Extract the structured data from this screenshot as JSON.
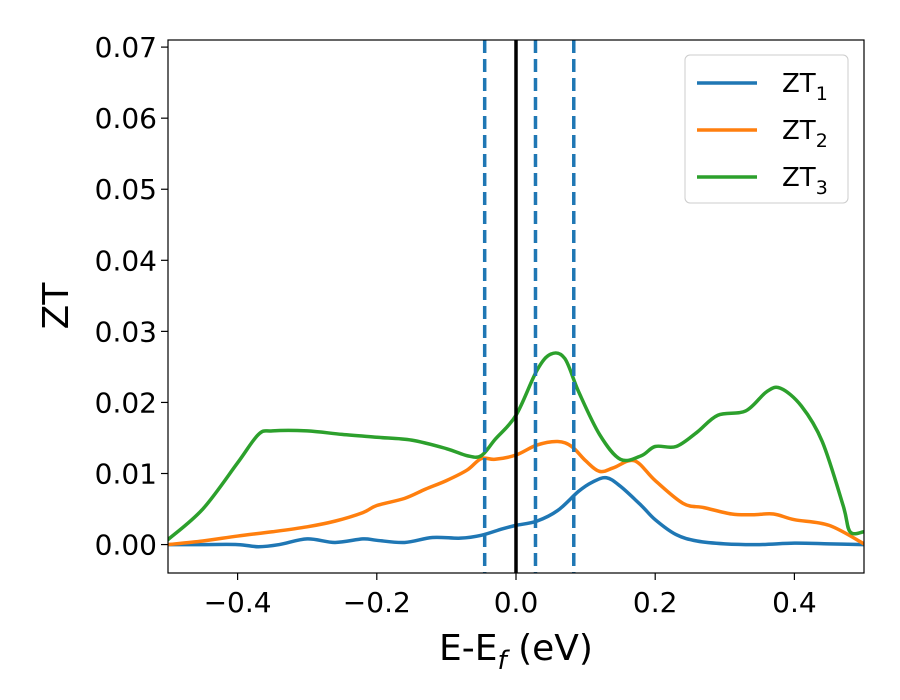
{
  "chart_data": {
    "type": "line",
    "title": "",
    "xlabel": "E-E",
    "xlabel_sub": "f",
    "xlabel_unit": " (eV)",
    "ylabel": "ZT",
    "xlim": [
      -0.5,
      0.5
    ],
    "ylim": [
      -0.004,
      0.071
    ],
    "x_ticks": [
      -0.4,
      -0.2,
      0.0,
      0.2,
      0.4
    ],
    "x_tick_labels": [
      "−0.4",
      "−0.2",
      "0.0",
      "0.2",
      "0.4"
    ],
    "y_ticks": [
      0.0,
      0.01,
      0.02,
      0.03,
      0.04,
      0.05,
      0.06,
      0.07
    ],
    "y_tick_labels": [
      "0.00",
      "0.01",
      "0.02",
      "0.03",
      "0.04",
      "0.05",
      "0.06",
      "0.07"
    ],
    "grid": false,
    "legend_position": "top-right",
    "vertical_lines": [
      {
        "x": -0.045,
        "style": "dashed",
        "color": "#1f77b4"
      },
      {
        "x": 0.0,
        "style": "solid",
        "color": "#000000"
      },
      {
        "x": 0.028,
        "style": "dashed",
        "color": "#1f77b4"
      },
      {
        "x": 0.083,
        "style": "dashed",
        "color": "#1f77b4"
      }
    ],
    "series": [
      {
        "name": "ZT",
        "name_sub": "1",
        "color": "#1f77b4",
        "x": [
          -0.5,
          -0.45,
          -0.4,
          -0.37,
          -0.34,
          -0.3,
          -0.26,
          -0.22,
          -0.2,
          -0.16,
          -0.12,
          -0.08,
          -0.05,
          -0.02,
          0.0,
          0.03,
          0.06,
          0.09,
          0.11,
          0.13,
          0.15,
          0.18,
          0.2,
          0.23,
          0.26,
          0.3,
          0.35,
          0.4,
          0.45,
          0.5
        ],
        "values": [
          0.0,
          0.0,
          0.0,
          -0.0003,
          0.0,
          0.0008,
          0.0003,
          0.0008,
          0.0006,
          0.0003,
          0.001,
          0.0009,
          0.0013,
          0.0022,
          0.0027,
          0.0033,
          0.0048,
          0.0075,
          0.0088,
          0.0094,
          0.0082,
          0.0055,
          0.0035,
          0.0014,
          0.0005,
          0.0001,
          0.0,
          0.0002,
          0.0001,
          0.0
        ]
      },
      {
        "name": "ZT",
        "name_sub": "2",
        "color": "#ff7f0e",
        "x": [
          -0.5,
          -0.45,
          -0.4,
          -0.35,
          -0.3,
          -0.26,
          -0.22,
          -0.2,
          -0.16,
          -0.13,
          -0.1,
          -0.07,
          -0.05,
          -0.03,
          0.0,
          0.03,
          0.06,
          0.08,
          0.1,
          0.12,
          0.14,
          0.17,
          0.2,
          0.24,
          0.27,
          0.31,
          0.34,
          0.37,
          0.4,
          0.45,
          0.5
        ],
        "values": [
          0.0,
          0.0005,
          0.0012,
          0.0018,
          0.0025,
          0.0033,
          0.0045,
          0.0055,
          0.0065,
          0.0078,
          0.009,
          0.0105,
          0.0121,
          0.012,
          0.0126,
          0.014,
          0.0145,
          0.0138,
          0.0118,
          0.0103,
          0.0108,
          0.0118,
          0.009,
          0.0058,
          0.0052,
          0.0043,
          0.0042,
          0.0043,
          0.0035,
          0.0027,
          0.0001
        ]
      },
      {
        "name": "ZT",
        "name_sub": "3",
        "color": "#2ca02c",
        "x": [
          -0.5,
          -0.45,
          -0.4,
          -0.37,
          -0.35,
          -0.3,
          -0.25,
          -0.2,
          -0.15,
          -0.1,
          -0.07,
          -0.05,
          -0.03,
          0.0,
          0.03,
          0.05,
          0.07,
          0.09,
          0.12,
          0.15,
          0.18,
          0.2,
          0.23,
          0.26,
          0.29,
          0.33,
          0.36,
          0.38,
          0.41,
          0.44,
          0.47,
          0.48,
          0.5
        ],
        "values": [
          0.0007,
          0.005,
          0.0115,
          0.0155,
          0.016,
          0.016,
          0.0155,
          0.0151,
          0.0147,
          0.0135,
          0.0125,
          0.0125,
          0.0148,
          0.0182,
          0.0245,
          0.0268,
          0.0262,
          0.0215,
          0.0155,
          0.012,
          0.0125,
          0.0138,
          0.0138,
          0.0158,
          0.0182,
          0.0188,
          0.0215,
          0.022,
          0.0195,
          0.0145,
          0.0055,
          0.0018,
          0.0018
        ]
      }
    ]
  }
}
